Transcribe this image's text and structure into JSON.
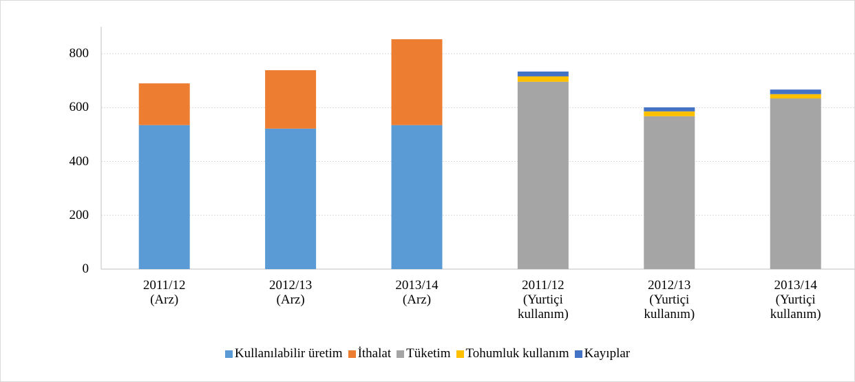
{
  "chart_data": {
    "type": "stacked_bar",
    "categories": [
      "2011/12 (Arz)",
      "2012/13 (Arz)",
      "2013/14 (Arz)",
      "2011/12 (Yurtiçi kullanım)",
      "2012/13 (Yurtiçi kullanım)",
      "2013/14 (Yurtiçi kullanım)"
    ],
    "series": [
      {
        "name": "Kullanılabilir üretim",
        "color": "#5b9bd5",
        "values": [
          535,
          522,
          535,
          null,
          null,
          null
        ]
      },
      {
        "name": "İthalat",
        "color": "#ed7d31",
        "values": [
          155,
          217,
          319,
          null,
          null,
          null
        ]
      },
      {
        "name": "Tüketim",
        "color": "#a5a5a5",
        "values": [
          null,
          null,
          null,
          696,
          568,
          634
        ]
      },
      {
        "name": "Tohumluk kullanım",
        "color": "#ffc000",
        "values": [
          null,
          null,
          null,
          20,
          18,
          16
        ]
      },
      {
        "name": "Kayıplar",
        "color": "#4472c4",
        "values": [
          null,
          null,
          null,
          18,
          15,
          17
        ]
      }
    ],
    "ylim": [
      0,
      900
    ],
    "yticks": [
      0,
      200,
      400,
      600,
      800
    ],
    "grid": true,
    "legend": "bottom"
  }
}
